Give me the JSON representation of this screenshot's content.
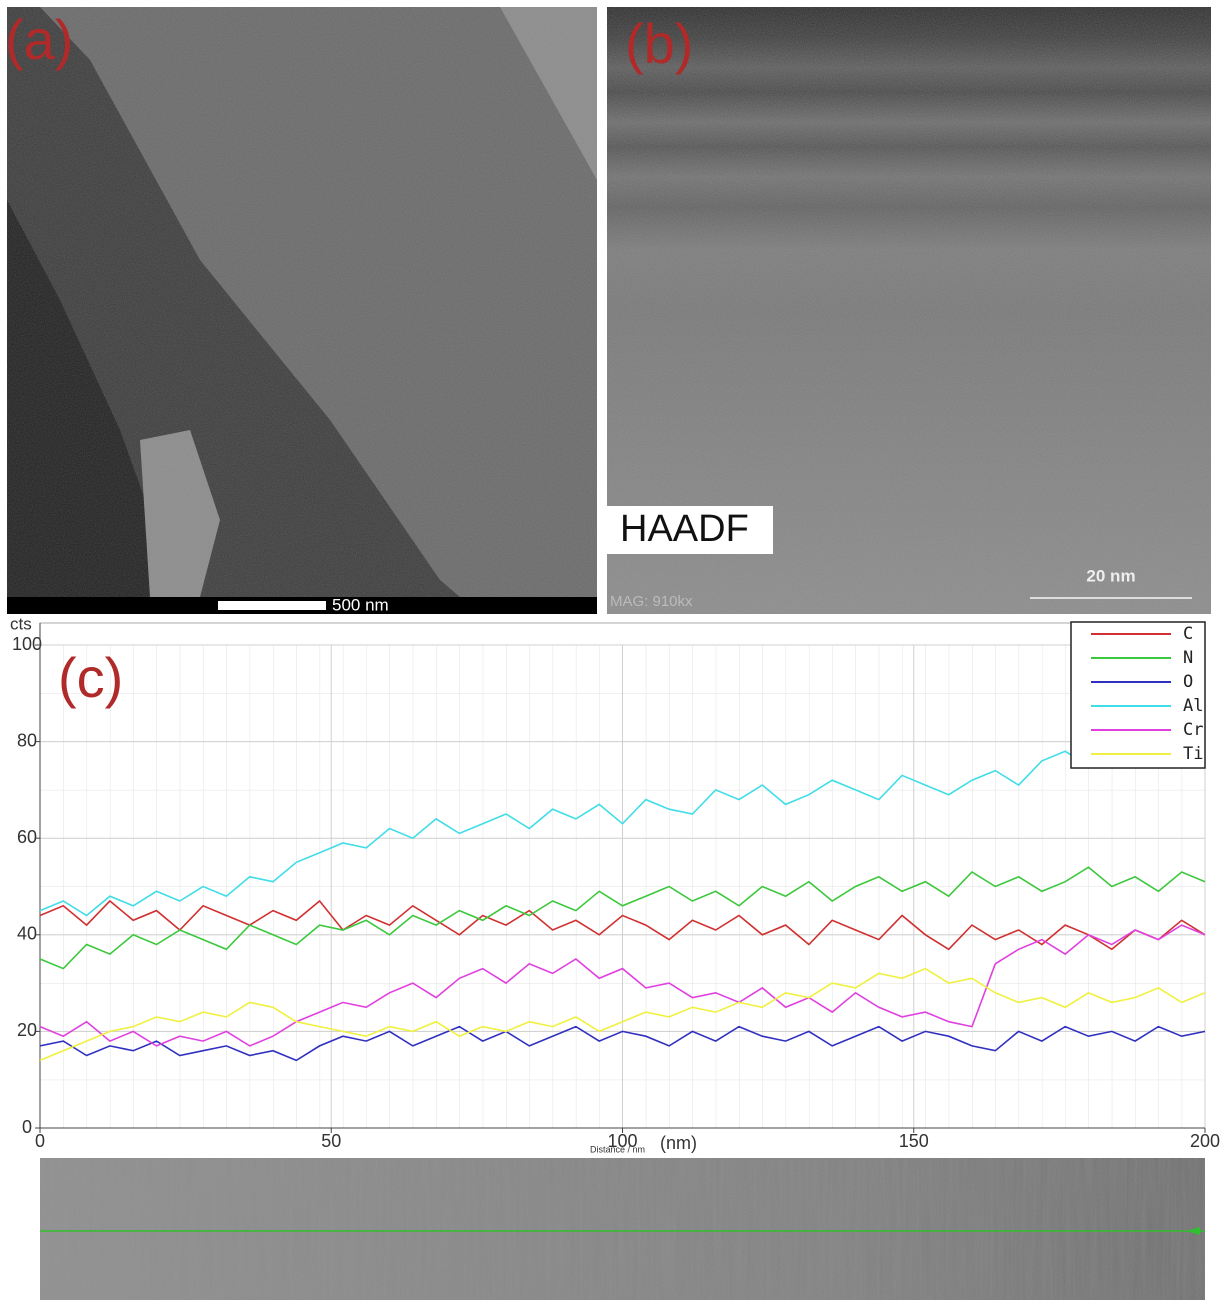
{
  "panels": {
    "a": {
      "label": "(a)",
      "scale_bar": "500 nm"
    },
    "b": {
      "label": "(b)",
      "mode": "HAADF",
      "scale_bar": "20 nm",
      "magnification": "MAG: 910kx"
    }
  },
  "chart_data": {
    "type": "line",
    "panel_label": "(c)",
    "ylabel": "cts",
    "xlabel": "Distance / nm",
    "xunit": "(nm)",
    "x": [
      0,
      4,
      8,
      12,
      16,
      20,
      24,
      28,
      32,
      36,
      40,
      44,
      48,
      52,
      56,
      60,
      64,
      68,
      72,
      76,
      80,
      84,
      88,
      92,
      96,
      100,
      104,
      108,
      112,
      116,
      120,
      124,
      128,
      132,
      136,
      140,
      144,
      148,
      152,
      156,
      160,
      164,
      168,
      172,
      176,
      180,
      184,
      188,
      192,
      196,
      200
    ],
    "xlim": [
      0,
      200
    ],
    "xticks": [
      0,
      50,
      100,
      150,
      200
    ],
    "ylim": [
      0,
      100
    ],
    "yticks": [
      0,
      20,
      40,
      60,
      80,
      100
    ],
    "grid": true,
    "legend": "top-right",
    "series": [
      {
        "name": "C",
        "color": "#d03030",
        "values": [
          44,
          46,
          42,
          47,
          43,
          45,
          41,
          46,
          44,
          42,
          45,
          43,
          47,
          41,
          44,
          42,
          46,
          43,
          40,
          44,
          42,
          45,
          41,
          43,
          40,
          44,
          42,
          39,
          43,
          41,
          44,
          40,
          42,
          38,
          43,
          41,
          39,
          44,
          40,
          37,
          42,
          39,
          41,
          38,
          42,
          40,
          37,
          41,
          39,
          43,
          40
        ]
      },
      {
        "name": "N",
        "color": "#3cc83c",
        "values": [
          35,
          33,
          38,
          36,
          40,
          38,
          41,
          39,
          37,
          42,
          40,
          38,
          42,
          41,
          43,
          40,
          44,
          42,
          45,
          43,
          46,
          44,
          47,
          45,
          49,
          46,
          48,
          50,
          47,
          49,
          46,
          50,
          48,
          51,
          47,
          50,
          52,
          49,
          51,
          48,
          53,
          50,
          52,
          49,
          51,
          54,
          50,
          52,
          49,
          53,
          51
        ]
      },
      {
        "name": "O",
        "color": "#3030c0",
        "values": [
          17,
          18,
          15,
          17,
          16,
          18,
          15,
          16,
          17,
          15,
          16,
          14,
          17,
          19,
          18,
          20,
          17,
          19,
          21,
          18,
          20,
          17,
          19,
          21,
          18,
          20,
          19,
          17,
          20,
          18,
          21,
          19,
          18,
          20,
          17,
          19,
          21,
          18,
          20,
          19,
          17,
          16,
          20,
          18,
          21,
          19,
          20,
          18,
          21,
          19,
          20
        ]
      },
      {
        "name": "Al",
        "color": "#40dde8",
        "values": [
          45,
          47,
          44,
          48,
          46,
          49,
          47,
          50,
          48,
          52,
          51,
          55,
          57,
          59,
          58,
          62,
          60,
          64,
          61,
          63,
          65,
          62,
          66,
          64,
          67,
          63,
          68,
          66,
          65,
          70,
          68,
          71,
          67,
          69,
          72,
          70,
          68,
          73,
          71,
          69,
          72,
          74,
          71,
          76,
          78,
          75,
          79,
          77,
          76,
          null,
          null
        ]
      },
      {
        "name": "Cr",
        "color": "#e040e0",
        "values": [
          21,
          19,
          22,
          18,
          20,
          17,
          19,
          18,
          20,
          17,
          19,
          22,
          24,
          26,
          25,
          28,
          30,
          27,
          31,
          33,
          30,
          34,
          32,
          35,
          31,
          33,
          29,
          30,
          27,
          28,
          26,
          29,
          25,
          27,
          24,
          28,
          25,
          23,
          24,
          22,
          21,
          34,
          37,
          39,
          36,
          40,
          38,
          41,
          39,
          42,
          40
        ]
      },
      {
        "name": "Ti",
        "color": "#f0f040",
        "values": [
          14,
          16,
          18,
          20,
          21,
          23,
          22,
          24,
          23,
          26,
          25,
          22,
          21,
          20,
          19,
          21,
          20,
          22,
          19,
          21,
          20,
          22,
          21,
          23,
          20,
          22,
          24,
          23,
          25,
          24,
          26,
          25,
          28,
          27,
          30,
          29,
          32,
          31,
          33,
          30,
          31,
          28,
          26,
          27,
          25,
          28,
          26,
          27,
          29,
          26,
          28
        ]
      }
    ]
  }
}
